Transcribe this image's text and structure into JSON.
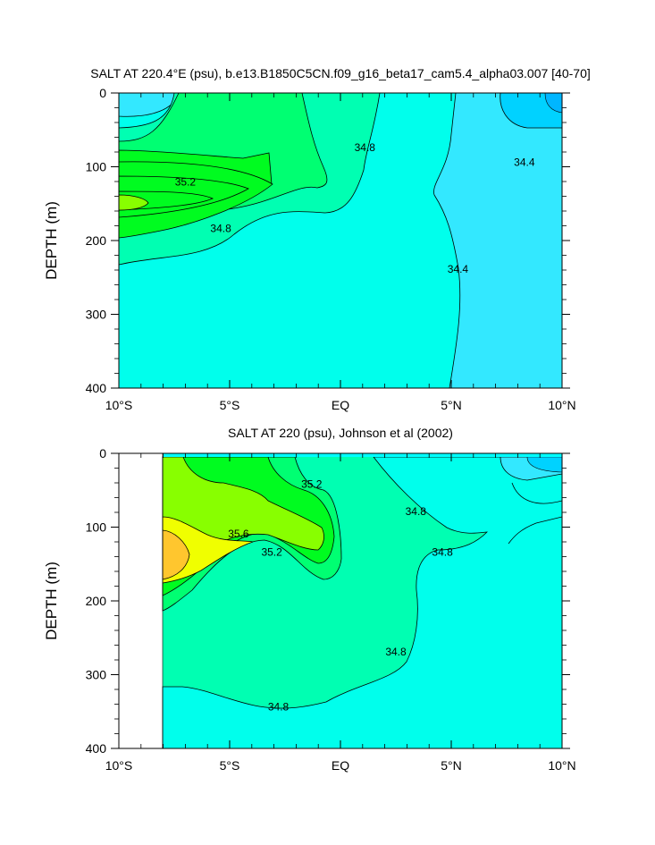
{
  "colors": {
    "s_lt_34_2": "#00b6ff",
    "s_34_2_34_4": "#00d2ff",
    "s_34_4_34_6": "#33e8ff",
    "s_34_6_34_8": "#00ffec",
    "s_34_8_35_0": "#00ffb2",
    "s_35_0_35_2": "#00ff72",
    "s_35_2_35_4": "#00fc20",
    "s_35_4_35_6": "#88ff00",
    "s_35_6_35_8": "#f0ff00",
    "s_gt_35_8": "#ffc62e",
    "model_top_band": "#00ffff"
  },
  "chart_data": [
    {
      "type": "contour",
      "title": "SALT AT 220.4°E (psu), b.e13.B1850C5CN.f09_g16_beta17_cam5.4_alpha03.007 [40-70]",
      "ylabel": "DEPTH (m)",
      "xlim": [
        -10,
        10
      ],
      "ylim": [
        400,
        0
      ],
      "x_ticks": [
        {
          "value": -10,
          "label": "10°S"
        },
        {
          "value": -5,
          "label": "5°S"
        },
        {
          "value": 0,
          "label": "EQ"
        },
        {
          "value": 5,
          "label": "5°N"
        },
        {
          "value": 10,
          "label": "10°N"
        }
      ],
      "y_ticks": [
        0,
        100,
        200,
        300,
        400
      ],
      "contour_labels": [
        {
          "value": "34.8",
          "lat": 1.1,
          "depth": 75
        },
        {
          "value": "35.2",
          "lat": -7.0,
          "depth": 122
        },
        {
          "value": "34.8",
          "lat": -5.4,
          "depth": 185
        },
        {
          "value": "34.4",
          "lat": 5.3,
          "depth": 240
        },
        {
          "value": "34.4",
          "lat": 8.3,
          "depth": 95
        }
      ]
    },
    {
      "type": "contour",
      "title": "SALT AT 220 (psu), Johnson et al (2002)",
      "ylabel": "DEPTH (m)",
      "xlim": [
        -10,
        10
      ],
      "ylim": [
        400,
        0
      ],
      "x_ticks": [
        {
          "value": -10,
          "label": "10°S"
        },
        {
          "value": -5,
          "label": "5°S"
        },
        {
          "value": 0,
          "label": "EQ"
        },
        {
          "value": 5,
          "label": "5°N"
        },
        {
          "value": 10,
          "label": "10°N"
        }
      ],
      "y_ticks": [
        0,
        100,
        200,
        300,
        400
      ],
      "contour_labels": [
        {
          "value": "35.2",
          "lat": -1.3,
          "depth": 43
        },
        {
          "value": "34.8",
          "lat": 3.4,
          "depth": 80
        },
        {
          "value": "35.6",
          "lat": -4.6,
          "depth": 110
        },
        {
          "value": "35.2",
          "lat": -3.1,
          "depth": 135
        },
        {
          "value": "34.8",
          "lat": 4.6,
          "depth": 135
        },
        {
          "value": "34.8",
          "lat": 2.5,
          "depth": 270
        },
        {
          "value": "34.8",
          "lat": -2.8,
          "depth": 345
        }
      ]
    }
  ]
}
